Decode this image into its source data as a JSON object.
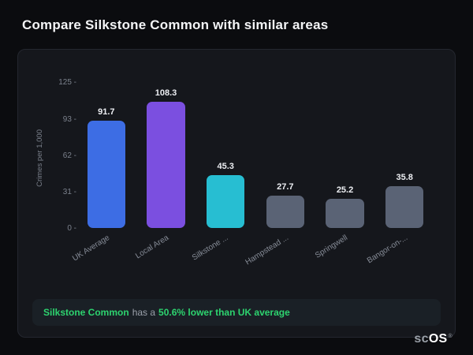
{
  "page": {
    "title": "Compare Silkstone Common with similar areas"
  },
  "chart_data": {
    "type": "bar",
    "categories": [
      "UK Average",
      "Local Area",
      "Silkstone ...",
      "Hampstead ...",
      "Springwell",
      "Bangor-on-..."
    ],
    "values": [
      91.7,
      108.3,
      45.3,
      27.7,
      25.2,
      35.8
    ],
    "value_labels": [
      "91.7",
      "108.3",
      "45.3",
      "27.7",
      "25.2",
      "35.8"
    ],
    "bar_colors": [
      "#3d6de4",
      "#7b4fe0",
      "#27bed2",
      "#5a6375",
      "#5a6375",
      "#5a6375"
    ],
    "title": "",
    "xlabel": "",
    "ylabel": "Crimes per 1,000",
    "yticks": [
      0,
      31,
      62,
      93,
      125
    ],
    "ylim": [
      0,
      125
    ],
    "grid": false,
    "legend": "none"
  },
  "summary": {
    "area": "Silkstone Common",
    "connector": "has a",
    "stat": "50.6% lower than UK average",
    "accent_green": "#2dd36f",
    "banner_bg": "#1a2026"
  },
  "logo": {
    "prefix": "sc",
    "suffix": "OS",
    "reg": "®"
  }
}
